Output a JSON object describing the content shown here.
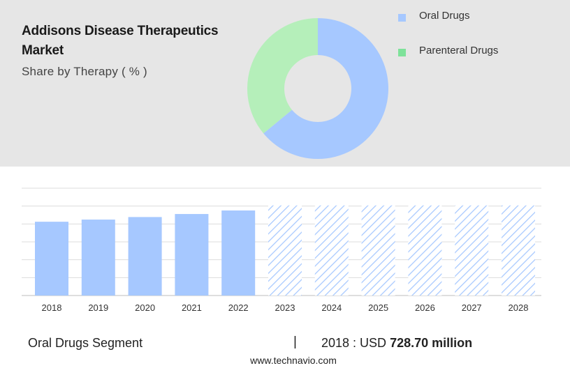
{
  "header": {
    "title": "Addisons Disease Therapeutics Market",
    "subtitle": "Share by Therapy ( % )"
  },
  "legend": [
    {
      "label": "Oral Drugs",
      "color": "#a6c8ff"
    },
    {
      "label": "Parenteral Drugs",
      "color": "#7ee29a"
    }
  ],
  "chart_data": [
    {
      "type": "pie",
      "subtype": "donut",
      "categories": [
        "Oral Drugs",
        "Parenteral Drugs"
      ],
      "values": [
        64,
        36
      ],
      "colors": [
        "#a6c8ff",
        "#b5efba"
      ]
    },
    {
      "type": "bar",
      "categories": [
        "2018",
        "2019",
        "2020",
        "2021",
        "2022",
        "2023",
        "2024",
        "2025",
        "2026",
        "2027",
        "2028"
      ],
      "values": [
        728.7,
        750,
        775,
        805,
        840,
        890,
        890,
        890,
        890,
        890,
        890
      ],
      "forecast_from": "2023",
      "ylim": [
        0,
        1060
      ],
      "grid": true,
      "bar_color": "#a6c8ff",
      "forecast_style": "hatched"
    }
  ],
  "footer": {
    "segment": "Oral Drugs Segment",
    "divider": "|",
    "year_label": "2018 : USD",
    "value": "728.70 million",
    "source": "www.technavio.com"
  }
}
